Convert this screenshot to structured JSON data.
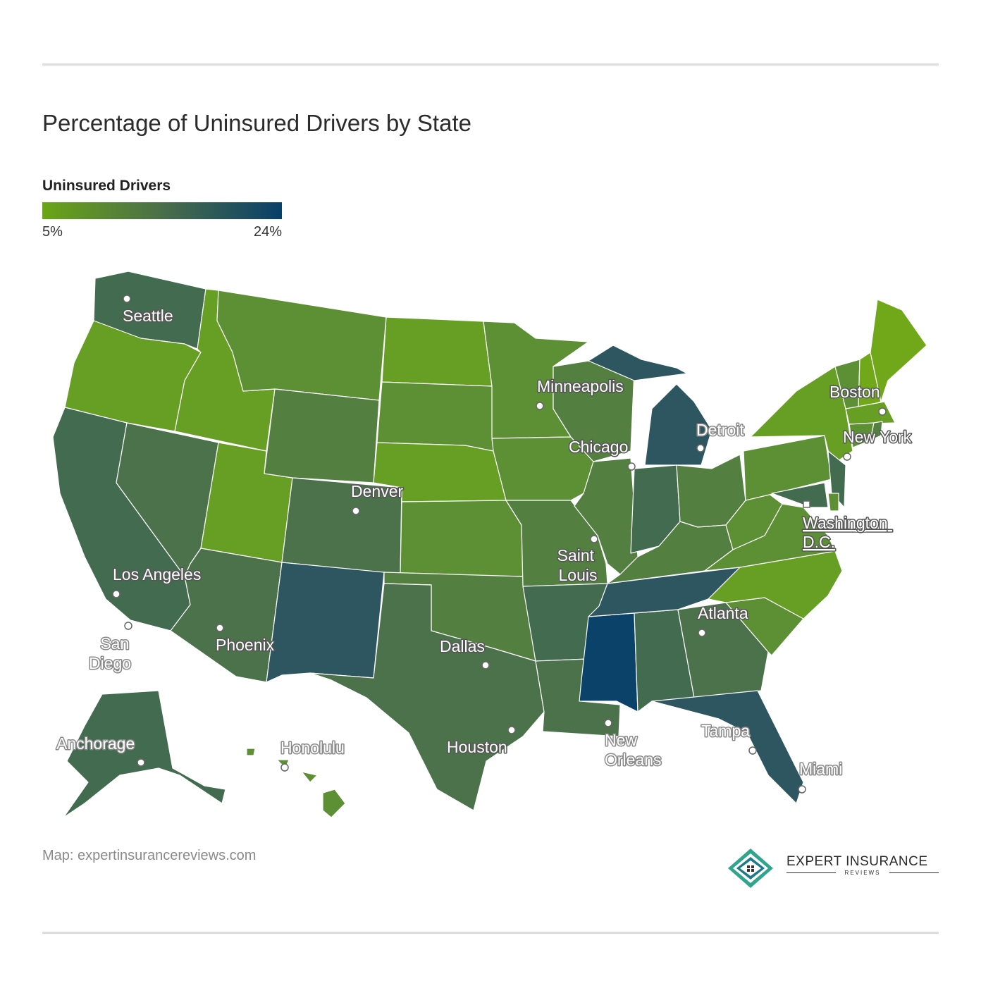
{
  "title": "Percentage of Uninsured Drivers by State",
  "legend": {
    "title": "Uninsured Drivers",
    "min_label": "5%",
    "max_label": "24%",
    "color_low": "#6aa516",
    "color_mid": "#4a6e4a",
    "color_high": "#083f69"
  },
  "source": "Map: expertinsurancereviews.com",
  "brand": {
    "name": "EXPERT INSURANCE",
    "sub": "REVIEWS",
    "logo_icon": "house-diamond-icon"
  },
  "state_colors": {
    "lightest": "#70a81a",
    "light": "#679e24",
    "midlight": "#5d8f35",
    "mid": "#537f41",
    "middark": "#4b724a",
    "dark": "#426b50",
    "darker": "#2d5660",
    "darkest": "#0b426a"
  },
  "cities": [
    {
      "name": "Seattle"
    },
    {
      "name": "Minneapolis"
    },
    {
      "name": "Boston"
    },
    {
      "name": "Detroit"
    },
    {
      "name": "Chicago"
    },
    {
      "name": "New York"
    },
    {
      "name": "Denver"
    },
    {
      "name": "Washington D.C."
    },
    {
      "name": "Saint Louis"
    },
    {
      "name": "Los Angeles"
    },
    {
      "name": "Atlanta"
    },
    {
      "name": "San Diego"
    },
    {
      "name": "Phoenix"
    },
    {
      "name": "Dallas"
    },
    {
      "name": "Anchorage"
    },
    {
      "name": "Honolulu"
    },
    {
      "name": "Houston"
    },
    {
      "name": "New Orleans"
    },
    {
      "name": "Tampa"
    },
    {
      "name": "Miami"
    }
  ]
}
